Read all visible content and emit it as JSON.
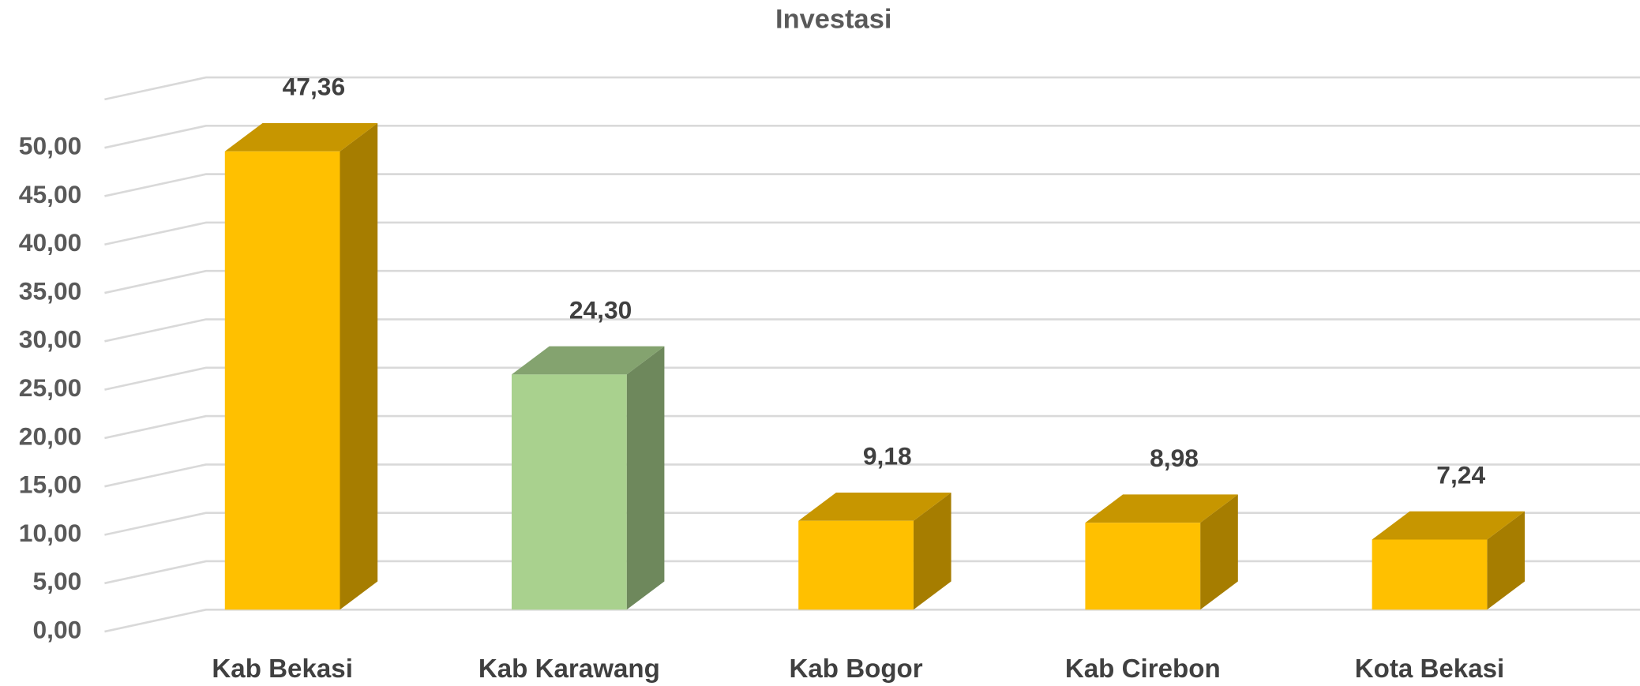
{
  "chart_data": {
    "type": "bar3d",
    "title": "Investasi",
    "categories": [
      "Kab Bekasi",
      "Kab Karawang",
      "Kab Bogor",
      "Kab Cirebon",
      "Kota Bekasi"
    ],
    "values": [
      47.36,
      24.3,
      9.18,
      8.98,
      7.24
    ],
    "value_labels": [
      "47,36",
      "24,30",
      "9,18",
      "8,98",
      "7,24"
    ],
    "colors": [
      "#ffc000",
      "#a9d18e",
      "#ffc000",
      "#ffc000",
      "#ffc000"
    ],
    "ylim": [
      0,
      55
    ],
    "yticks": [
      {
        "value": 0,
        "label": "0,00"
      },
      {
        "value": 5,
        "label": "5,00"
      },
      {
        "value": 10,
        "label": "10,00"
      },
      {
        "value": 15,
        "label": "15,00"
      },
      {
        "value": 20,
        "label": "20,00"
      },
      {
        "value": 25,
        "label": "25,00"
      },
      {
        "value": 30,
        "label": "30,00"
      },
      {
        "value": 35,
        "label": "35,00"
      },
      {
        "value": 40,
        "label": "40,00"
      },
      {
        "value": 45,
        "label": "45,00"
      },
      {
        "value": 50,
        "label": "50,00"
      }
    ],
    "grid": true
  }
}
